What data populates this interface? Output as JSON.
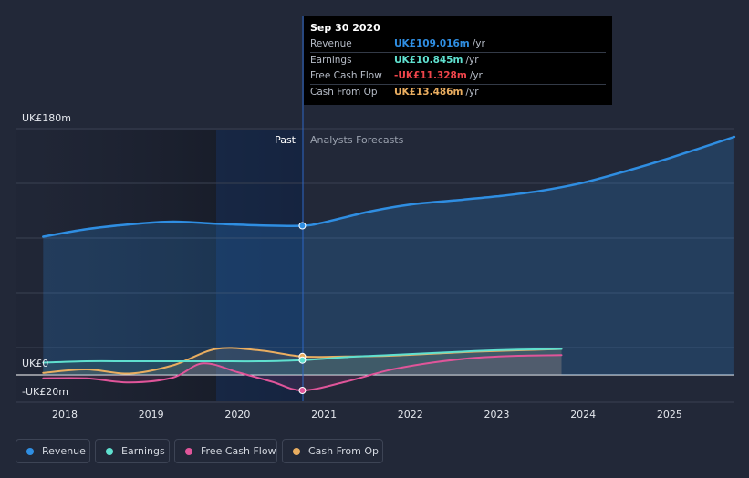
{
  "chart_data": {
    "type": "line",
    "title": "",
    "y_unit": "UK£ m",
    "ylim": [
      -20,
      180
    ],
    "y_axis_labels": [
      "UK£180m",
      "UK£0",
      "-UK£20m"
    ],
    "x_axis_labels": [
      "2018",
      "2019",
      "2020",
      "2021",
      "2022",
      "2023",
      "2024",
      "2025"
    ],
    "past_label": "Past",
    "forecast_label": "Analysts Forecasts",
    "highlight_x": 2020.75,
    "series": [
      {
        "name": "Revenue",
        "color": "#2f8ee2",
        "points": [
          [
            2017.75,
            101
          ],
          [
            2018.25,
            106.5
          ],
          [
            2018.75,
            110
          ],
          [
            2019.25,
            112
          ],
          [
            2019.75,
            110.5
          ],
          [
            2020.25,
            109.3
          ],
          [
            2020.75,
            109.0
          ],
          [
            2021.0,
            111.5
          ],
          [
            2021.5,
            119
          ],
          [
            2022.0,
            124.5
          ],
          [
            2022.5,
            127.5
          ],
          [
            2023.0,
            130.5
          ],
          [
            2023.5,
            134.5
          ],
          [
            2024.0,
            140.5
          ],
          [
            2024.5,
            149
          ],
          [
            2025.0,
            158.5
          ],
          [
            2025.75,
            174
          ]
        ]
      },
      {
        "name": "Earnings",
        "color": "#5fe0cf",
        "points": [
          [
            2017.75,
            9.0
          ],
          [
            2018.25,
            10.0
          ],
          [
            2018.75,
            10.0
          ],
          [
            2019.25,
            10.0
          ],
          [
            2019.75,
            10.0
          ],
          [
            2020.25,
            10.0
          ],
          [
            2020.75,
            10.845
          ],
          [
            2021.25,
            13.0
          ],
          [
            2021.75,
            14.5
          ],
          [
            2022.25,
            16.0
          ],
          [
            2022.75,
            17.5
          ],
          [
            2023.25,
            18.5
          ],
          [
            2023.75,
            19.0
          ]
        ]
      },
      {
        "name": "Free Cash Flow",
        "color": "#e0559a",
        "points": [
          [
            2017.75,
            -2.5
          ],
          [
            2018.25,
            -2.5
          ],
          [
            2018.75,
            -5.5
          ],
          [
            2019.25,
            -2.0
          ],
          [
            2019.6,
            8.5
          ],
          [
            2020.0,
            2.0
          ],
          [
            2020.4,
            -5.0
          ],
          [
            2020.75,
            -11.328
          ],
          [
            2021.25,
            -5.0
          ],
          [
            2021.75,
            3.5
          ],
          [
            2022.25,
            9.0
          ],
          [
            2022.75,
            12.5
          ],
          [
            2023.25,
            14.0
          ],
          [
            2023.75,
            14.5
          ]
        ]
      },
      {
        "name": "Cash From Op",
        "color": "#e9ad60",
        "points": [
          [
            2017.75,
            1.5
          ],
          [
            2018.25,
            4.0
          ],
          [
            2018.75,
            1.0
          ],
          [
            2019.25,
            7.0
          ],
          [
            2019.75,
            19.0
          ],
          [
            2020.25,
            18.0
          ],
          [
            2020.75,
            13.486
          ],
          [
            2021.25,
            13.5
          ],
          [
            2021.75,
            14.0
          ],
          [
            2022.25,
            15.5
          ],
          [
            2022.75,
            17.0
          ],
          [
            2023.25,
            18.0
          ],
          [
            2023.75,
            19.0
          ]
        ]
      }
    ]
  },
  "tooltip": {
    "date": "Sep 30 2020",
    "rows": [
      {
        "label": "Revenue",
        "value": "UK£109.016m",
        "unit": "/yr",
        "color": "#2f8ee2"
      },
      {
        "label": "Earnings",
        "value": "UK£10.845m",
        "unit": "/yr",
        "color": "#5fe0cf"
      },
      {
        "label": "Free Cash Flow",
        "value": "-UK£11.328m",
        "unit": "/yr",
        "color": "#f0454b"
      },
      {
        "label": "Cash From Op",
        "value": "UK£13.486m",
        "unit": "/yr",
        "color": "#e9ad60"
      }
    ]
  },
  "legend": [
    {
      "label": "Revenue",
      "color": "#2f8ee2"
    },
    {
      "label": "Earnings",
      "color": "#5fe0cf"
    },
    {
      "label": "Free Cash Flow",
      "color": "#e0559a"
    },
    {
      "label": "Cash From Op",
      "color": "#e9ad60"
    }
  ]
}
